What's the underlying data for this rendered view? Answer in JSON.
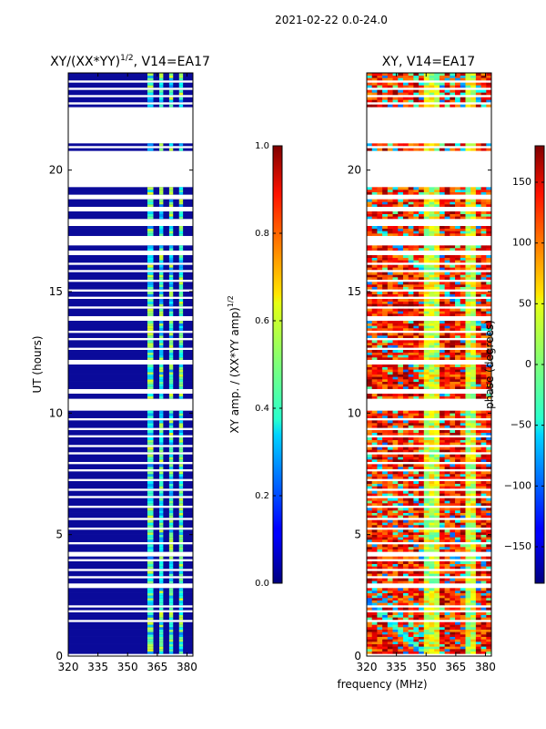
{
  "figure": {
    "suptitle": "2021-02-22 0.0-24.0",
    "shared_xlabel": "frequency (MHz)"
  },
  "chart_data": [
    {
      "type": "heatmap",
      "title_main": "XY/(XX*YY)",
      "title_sup": "1/2",
      "title_tail": ", V14=EA17",
      "xlabel": "",
      "ylabel": "UT (hours)",
      "xlim": [
        320,
        383
      ],
      "ylim": [
        0,
        24
      ],
      "xticks": [
        320,
        335,
        350,
        365,
        380
      ],
      "yticks": [
        0,
        5,
        10,
        15,
        20
      ],
      "colorbar": {
        "label_main": "XY amp. / (XX*YY amp)",
        "label_sup": "1/2",
        "range": [
          0.0,
          1.0
        ],
        "ticks": [
          "0.0",
          "0.2",
          "0.4",
          "0.6",
          "0.8",
          "1.0"
        ],
        "tick_values": [
          0.0,
          0.2,
          0.4,
          0.6,
          0.8,
          1.0
        ]
      },
      "data_gaps_hours": [
        [
          0.0,
          0.1
        ],
        [
          1.4,
          1.5
        ],
        [
          1.8,
          1.9
        ],
        [
          2.0,
          2.1
        ],
        [
          2.8,
          3.0
        ],
        [
          3.2,
          3.3
        ],
        [
          3.5,
          3.6
        ],
        [
          3.9,
          4.0
        ],
        [
          4.1,
          4.3
        ],
        [
          4.6,
          4.7
        ],
        [
          5.2,
          5.3
        ],
        [
          5.6,
          5.7
        ],
        [
          6.1,
          6.2
        ],
        [
          6.5,
          6.6
        ],
        [
          6.8,
          6.9
        ],
        [
          7.2,
          7.3
        ],
        [
          7.6,
          7.7
        ],
        [
          7.9,
          8.0
        ],
        [
          8.3,
          8.4
        ],
        [
          8.6,
          8.7
        ],
        [
          9.0,
          9.1
        ],
        [
          9.3,
          9.4
        ],
        [
          9.7,
          9.8
        ],
        [
          10.1,
          10.6
        ],
        [
          10.8,
          11.0
        ],
        [
          12.0,
          12.2
        ],
        [
          12.6,
          12.7
        ],
        [
          13.0,
          13.1
        ],
        [
          13.3,
          13.4
        ],
        [
          13.8,
          14.0
        ],
        [
          14.3,
          14.4
        ],
        [
          14.7,
          14.8
        ],
        [
          15.0,
          15.1
        ],
        [
          15.4,
          15.5
        ],
        [
          15.8,
          15.9
        ],
        [
          16.1,
          16.2
        ],
        [
          16.5,
          16.7
        ],
        [
          16.9,
          17.3
        ],
        [
          17.7,
          18.0
        ],
        [
          18.3,
          18.5
        ],
        [
          18.8,
          19.0
        ],
        [
          19.3,
          20.8
        ],
        [
          20.9,
          21.0
        ],
        [
          21.1,
          22.6
        ],
        [
          22.7,
          22.8
        ],
        [
          23.0,
          23.1
        ],
        [
          23.3,
          23.4
        ],
        [
          23.6,
          23.7
        ]
      ],
      "band_ranges_mhz": [
        [
          360,
          363
        ],
        [
          366,
          368
        ],
        [
          371,
          373
        ],
        [
          376,
          378
        ]
      ]
    },
    {
      "type": "heatmap",
      "title": "XY, V14=EA17",
      "xlabel": "frequency (MHz)",
      "ylabel": "",
      "xlim": [
        320,
        383
      ],
      "ylim": [
        0,
        24
      ],
      "xticks": [
        320,
        335,
        350,
        365,
        380
      ],
      "yticks": [
        0,
        5,
        10,
        15,
        20
      ],
      "colorbar": {
        "label": "phase (degrees)",
        "range": [
          -180,
          180
        ],
        "ticks": [
          "150",
          "100",
          "50",
          "0",
          "−50",
          "−100",
          "−150"
        ],
        "tick_values": [
          150,
          100,
          50,
          0,
          -50,
          -100,
          -150
        ]
      },
      "data_gaps_hours": [
        [
          0.0,
          0.1
        ],
        [
          1.4,
          1.5
        ],
        [
          1.8,
          1.9
        ],
        [
          2.0,
          2.1
        ],
        [
          2.8,
          3.0
        ],
        [
          3.2,
          3.3
        ],
        [
          3.5,
          3.6
        ],
        [
          3.9,
          4.0
        ],
        [
          4.1,
          4.3
        ],
        [
          4.6,
          4.7
        ],
        [
          5.2,
          5.3
        ],
        [
          5.6,
          5.7
        ],
        [
          6.1,
          6.2
        ],
        [
          6.5,
          6.6
        ],
        [
          6.8,
          6.9
        ],
        [
          7.2,
          7.3
        ],
        [
          7.6,
          7.7
        ],
        [
          7.9,
          8.0
        ],
        [
          8.3,
          8.4
        ],
        [
          8.6,
          8.7
        ],
        [
          9.0,
          9.1
        ],
        [
          9.3,
          9.4
        ],
        [
          9.7,
          9.8
        ],
        [
          10.1,
          10.6
        ],
        [
          10.8,
          11.0
        ],
        [
          12.0,
          12.2
        ],
        [
          12.6,
          12.7
        ],
        [
          13.0,
          13.1
        ],
        [
          13.3,
          13.4
        ],
        [
          13.8,
          14.0
        ],
        [
          14.3,
          14.4
        ],
        [
          14.7,
          14.8
        ],
        [
          15.0,
          15.1
        ],
        [
          15.4,
          15.5
        ],
        [
          15.8,
          15.9
        ],
        [
          16.1,
          16.2
        ],
        [
          16.5,
          16.7
        ],
        [
          16.9,
          17.3
        ],
        [
          17.7,
          18.0
        ],
        [
          18.3,
          18.5
        ],
        [
          18.8,
          19.0
        ],
        [
          19.3,
          20.8
        ],
        [
          20.9,
          21.0
        ],
        [
          21.1,
          22.6
        ],
        [
          22.7,
          22.8
        ],
        [
          23.0,
          23.1
        ],
        [
          23.3,
          23.4
        ],
        [
          23.6,
          23.7
        ]
      ],
      "band_ranges_mhz": [
        [
          348,
          358
        ],
        [
          370,
          375
        ]
      ]
    }
  ]
}
